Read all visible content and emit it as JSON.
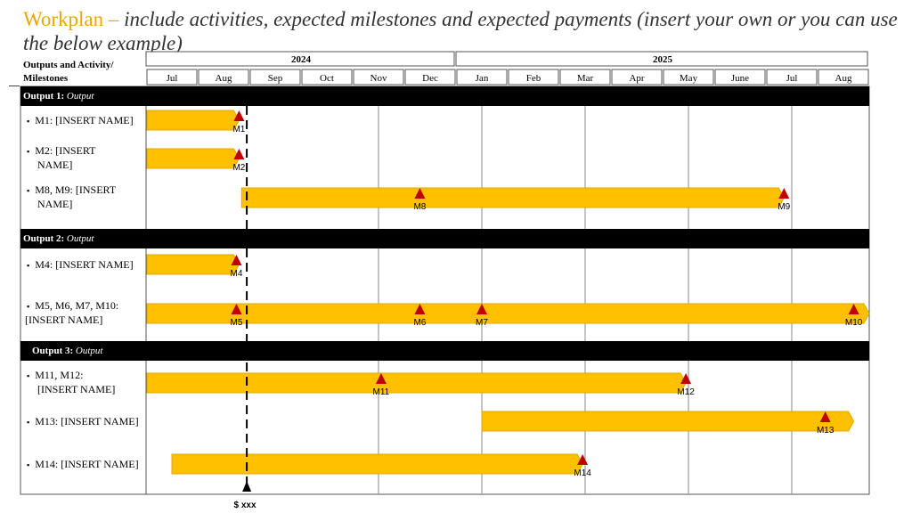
{
  "title": {
    "lead": "Workplan – ",
    "rest": "include activities, expected milestones and expected payments (insert your own or you can use the below example)"
  },
  "header": {
    "label_line1": "Outputs and Activity/",
    "label_line2": "Milestones",
    "years": [
      {
        "label": "2024",
        "start_month": 0,
        "end_month": 6
      },
      {
        "label": "2025",
        "start_month": 6,
        "end_month": 14
      }
    ],
    "months": [
      "Jul",
      "Aug",
      "Sep",
      "Oct",
      "Nov",
      "Dec",
      "Jan",
      "Feb",
      "Mar",
      "Apr",
      "May",
      "June",
      "Jul",
      "Aug"
    ]
  },
  "outputs": [
    {
      "name": "Output 1:",
      "sub": "Output"
    },
    {
      "name": "Output 2:",
      "sub": "Output"
    },
    {
      "name": "Output 3:",
      "sub": "Output"
    }
  ],
  "rows": [
    {
      "label_lines": [
        "M1: [INSERT NAME]"
      ],
      "bar": {
        "start": 0,
        "end": 1.8
      },
      "milestones": [
        {
          "id": "M1",
          "at": 1.8
        }
      ]
    },
    {
      "label_lines": [
        "M2: [INSERT",
        "NAME]"
      ],
      "bar": {
        "start": 0,
        "end": 1.8
      },
      "milestones": [
        {
          "id": "M2",
          "at": 1.8
        }
      ]
    },
    {
      "label_lines": [
        "M8, M9: [INSERT",
        "NAME]"
      ],
      "bar": {
        "start": 1.85,
        "end": 12.35
      },
      "milestones": [
        {
          "id": "M8",
          "at": 5.3
        },
        {
          "id": "M9",
          "at": 12.35
        }
      ]
    },
    {
      "label_lines": [
        "M4: [INSERT NAME]"
      ],
      "bar": {
        "start": 0,
        "end": 1.8
      },
      "milestones": [
        {
          "id": "M4",
          "at": 1.75
        }
      ]
    },
    {
      "label_lines": [
        "M5, M6, M7, M10:",
        "[INSERT NAME]"
      ],
      "bar": {
        "start": 0,
        "end": 14
      },
      "milestones": [
        {
          "id": "M5",
          "at": 1.75
        },
        {
          "id": "M6",
          "at": 5.3
        },
        {
          "id": "M7",
          "at": 6.5
        },
        {
          "id": "M10",
          "at": 13.7
        }
      ]
    },
    {
      "label_lines": [
        "M11, M12:",
        "[INSERT NAME]"
      ],
      "bar": {
        "start": 0,
        "end": 10.45
      },
      "milestones": [
        {
          "id": "M11",
          "at": 4.55
        },
        {
          "id": "M12",
          "at": 10.45
        }
      ]
    },
    {
      "label_lines": [
        "M13: [INSERT NAME]"
      ],
      "bar": {
        "start": 6.5,
        "end": 13.7
      },
      "milestones": [
        {
          "id": "M13",
          "at": 13.15
        }
      ]
    },
    {
      "label_lines": [
        "M14: [INSERT NAME]"
      ],
      "bar": {
        "start": 0.5,
        "end": 8.45
      },
      "milestones": [
        {
          "id": "M14",
          "at": 8.45
        }
      ]
    }
  ],
  "payment": {
    "label": "$ xxx",
    "at": 1.95
  },
  "colors": {
    "bar": "#ffc000",
    "bar_edge": "#e0a800",
    "milestone": "#c00000",
    "output_band": "#000000",
    "grid": "#555555"
  }
}
